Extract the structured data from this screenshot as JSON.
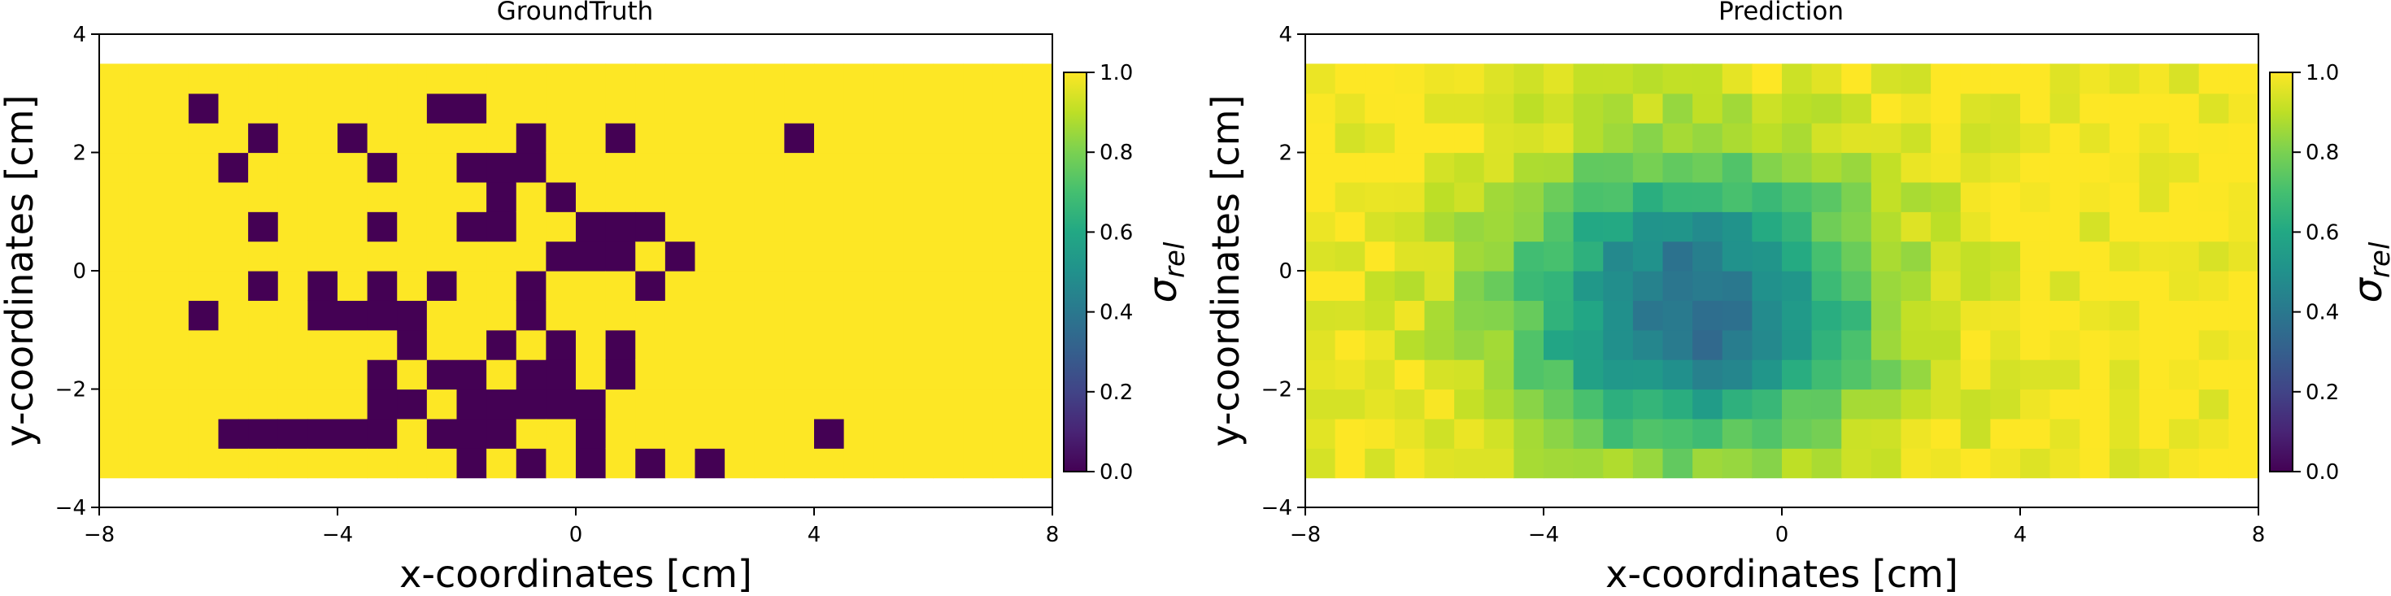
{
  "chart_data": [
    {
      "type": "heatmap",
      "title": "GroundTruth",
      "xlabel": "x-coordinates [cm]",
      "ylabel": "y-coordinates [cm]",
      "xlim": [
        -8,
        8
      ],
      "ylim": [
        -4,
        4
      ],
      "xticks": [
        -8,
        -4,
        0,
        4,
        8
      ],
      "yticks": [
        -4,
        -2,
        0,
        2,
        4
      ],
      "grid": false,
      "cell_size_cm": 0.5,
      "grid_extent": {
        "x": [
          -8,
          8
        ],
        "y": [
          -3.5,
          3.5
        ]
      },
      "default_value": 1.0,
      "nonzero_note": "All cells not listed below have value 1.0",
      "zero_cells": [
        [
          -6.5,
          2.5
        ],
        [
          -5.5,
          2.0
        ],
        [
          -6.0,
          1.5
        ],
        [
          -4.0,
          2.0
        ],
        [
          -3.5,
          1.5
        ],
        [
          -2.0,
          2.5
        ],
        [
          -2.5,
          2.5
        ],
        [
          -2.0,
          1.5
        ],
        [
          -1.0,
          2.0
        ],
        [
          -1.0,
          1.5
        ],
        [
          -1.5,
          1.5
        ],
        [
          -1.5,
          1.0
        ],
        [
          -0.5,
          1.0
        ],
        [
          0.5,
          2.0
        ],
        [
          3.5,
          2.0
        ],
        [
          -5.5,
          0.5
        ],
        [
          -3.5,
          0.5
        ],
        [
          -2.0,
          0.5
        ],
        [
          -1.5,
          0.5
        ],
        [
          0.0,
          0.5
        ],
        [
          0.5,
          0.5
        ],
        [
          1.0,
          0.5
        ],
        [
          0.0,
          0.0
        ],
        [
          -0.5,
          0.0
        ],
        [
          0.5,
          0.0
        ],
        [
          1.5,
          0.0
        ],
        [
          -5.5,
          -0.5
        ],
        [
          -4.5,
          -0.5
        ],
        [
          -3.5,
          -0.5
        ],
        [
          -2.5,
          -0.5
        ],
        [
          -1.0,
          -0.5
        ],
        [
          1.0,
          -0.5
        ],
        [
          -6.5,
          -1.0
        ],
        [
          -4.5,
          -1.0
        ],
        [
          -4.0,
          -1.0
        ],
        [
          -3.5,
          -1.0
        ],
        [
          -3.0,
          -1.0
        ],
        [
          -1.0,
          -1.0
        ],
        [
          -3.0,
          -1.5
        ],
        [
          -1.5,
          -1.5
        ],
        [
          -0.5,
          -1.5
        ],
        [
          0.5,
          -1.5
        ],
        [
          -3.5,
          -2.0
        ],
        [
          -2.5,
          -2.0
        ],
        [
          -2.0,
          -2.0
        ],
        [
          -1.0,
          -2.0
        ],
        [
          -0.5,
          -2.0
        ],
        [
          0.5,
          -2.0
        ],
        [
          -3.5,
          -2.5
        ],
        [
          -3.0,
          -2.5
        ],
        [
          -2.0,
          -2.5
        ],
        [
          -1.5,
          -2.5
        ],
        [
          -1.0,
          -2.5
        ],
        [
          -0.5,
          -2.5
        ],
        [
          0.0,
          -2.5
        ],
        [
          -4.0,
          -3.0
        ],
        [
          -3.5,
          -3.0
        ],
        [
          -2.5,
          -3.0
        ],
        [
          -1.5,
          -3.0
        ],
        [
          0.0,
          -3.0
        ],
        [
          -6.0,
          -3.0
        ],
        [
          -5.5,
          -3.0
        ],
        [
          -5.0,
          -3.0
        ],
        [
          -4.5,
          -3.0
        ],
        [
          -2.0,
          -3.0
        ],
        [
          -1.5,
          -3.0
        ],
        [
          4.0,
          -3.0
        ],
        [
          -2.0,
          -3.5
        ],
        [
          -1.0,
          -3.5
        ],
        [
          0.0,
          -3.5
        ],
        [
          1.0,
          -3.5
        ],
        [
          2.0,
          -3.5
        ]
      ],
      "colorbar": {
        "label": "σ_rel",
        "label_main": "σ",
        "label_sub": "rel",
        "range": [
          0,
          1
        ],
        "ticks": [
          0.0,
          0.2,
          0.4,
          0.6,
          0.8,
          1.0
        ],
        "tick_labels": [
          "0.0",
          "0.2",
          "0.4",
          "0.6",
          "0.8",
          "1.0"
        ],
        "colormap": "viridis"
      }
    },
    {
      "type": "heatmap",
      "title": "Prediction",
      "xlabel": "x-coordinates [cm]",
      "ylabel": "y-coordinates [cm]",
      "xlim": [
        -8,
        8
      ],
      "ylim": [
        -4,
        4
      ],
      "xticks": [
        -8,
        -4,
        0,
        4,
        8
      ],
      "yticks": [
        -4,
        -2,
        0,
        2,
        4
      ],
      "grid": false,
      "cell_size_cm": 0.5,
      "grid_extent": {
        "x": [
          -8,
          8
        ],
        "y": [
          -3.5,
          3.5
        ]
      },
      "field_model": {
        "description": "Smooth low-sigma region centred around (-1.5, -0.5) cm with high values toward the edges",
        "center": [
          -1.5,
          -0.6
        ],
        "radius": [
          3.2,
          2.6
        ],
        "min_value": 0.35,
        "max_value": 1.0
      },
      "colorbar": {
        "label": "σ_rel",
        "label_main": "σ",
        "label_sub": "rel",
        "range": [
          0,
          1
        ],
        "ticks": [
          0.0,
          0.2,
          0.4,
          0.6,
          0.8,
          1.0
        ],
        "tick_labels": [
          "0.0",
          "0.2",
          "0.4",
          "0.6",
          "0.8",
          "1.0"
        ],
        "colormap": "viridis"
      }
    }
  ],
  "colors": {
    "background": "#ffffff",
    "text": "#000000"
  }
}
